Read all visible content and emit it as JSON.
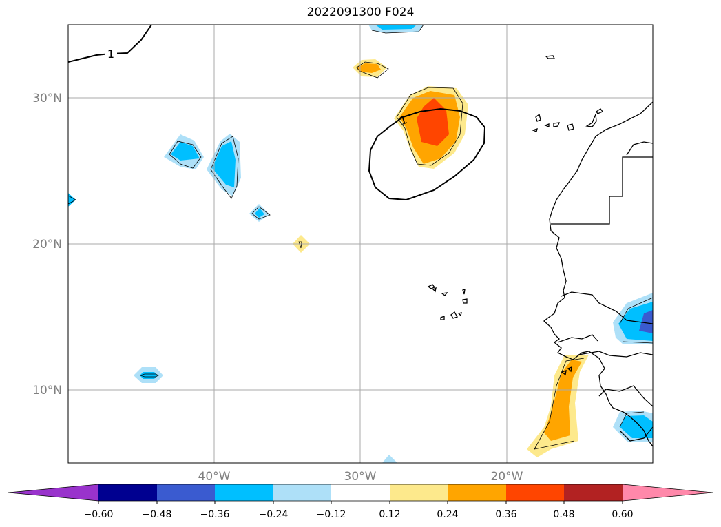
{
  "title": "2022091300 F024",
  "map": {
    "lat_labels": [
      "30°N",
      "20°N",
      "10°N"
    ],
    "lon_labels": [
      "40°W",
      "30°W",
      "20°W"
    ],
    "contour_labels": [
      "1",
      "1"
    ]
  },
  "colorbar": {
    "ticks": [
      "−0.60",
      "−0.48",
      "−0.36",
      "−0.24",
      "−0.12",
      "0.12",
      "0.24",
      "0.36",
      "0.48",
      "0.60"
    ],
    "colors": [
      "#9933cc",
      "#000090",
      "#3a5bd0",
      "#00bfff",
      "#aee0f8",
      "#ffffff",
      "#fde98c",
      "#ffa500",
      "#ff4500",
      "#b22222",
      "#ff88aa"
    ]
  }
}
